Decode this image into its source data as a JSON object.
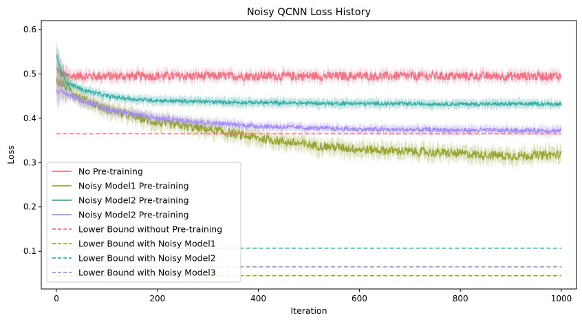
{
  "chart_data": {
    "type": "line",
    "title": "Noisy QCNN Loss History",
    "xlabel": "Iteration",
    "ylabel": "Loss",
    "xlim": [
      -30,
      1030
    ],
    "ylim": [
      0.015,
      0.62
    ],
    "xticks": [
      0,
      200,
      400,
      600,
      800,
      1000
    ],
    "yticks": [
      0.1,
      0.2,
      0.3,
      0.4,
      0.5,
      0.6
    ],
    "grid": false,
    "legend_position": "lower-left",
    "series": [
      {
        "name": "No Pre-training",
        "style": "solid",
        "color": "#f07183",
        "band": true,
        "x": [
          0,
          10,
          20,
          50,
          100,
          200,
          400,
          600,
          800,
          1000
        ],
        "y": [
          0.51,
          0.5,
          0.495,
          0.495,
          0.495,
          0.495,
          0.495,
          0.495,
          0.495,
          0.495
        ]
      },
      {
        "name": "Noisy Model1 Pre-training",
        "style": "solid",
        "color": "#97a431",
        "band": true,
        "x": [
          0,
          20,
          50,
          100,
          200,
          300,
          400,
          500,
          600,
          700,
          800,
          900,
          1000
        ],
        "y": [
          0.485,
          0.47,
          0.445,
          0.42,
          0.39,
          0.375,
          0.355,
          0.34,
          0.33,
          0.325,
          0.32,
          0.315,
          0.318
        ]
      },
      {
        "name": "Noisy Model2 Pre-training",
        "style": "solid",
        "color": "#36ada4",
        "band": true,
        "x": [
          0,
          5,
          10,
          20,
          50,
          100,
          150,
          200,
          300,
          400,
          600,
          800,
          1000
        ],
        "y": [
          0.54,
          0.525,
          0.505,
          0.48,
          0.465,
          0.45,
          0.443,
          0.44,
          0.437,
          0.435,
          0.433,
          0.432,
          0.432
        ]
      },
      {
        "name": "Noisy Model2 Pre-training",
        "style": "solid",
        "color": "#a48cf4",
        "band": true,
        "x": [
          0,
          20,
          50,
          100,
          200,
          300,
          400,
          500,
          600,
          800,
          1000
        ],
        "y": [
          0.462,
          0.455,
          0.44,
          0.42,
          0.4,
          0.39,
          0.382,
          0.378,
          0.375,
          0.373,
          0.372
        ]
      },
      {
        "name": "Lower Bound without Pre-training",
        "style": "dashed",
        "color": "#f07183",
        "band": false,
        "x": [
          0,
          1000
        ],
        "y": [
          0.365,
          0.365
        ]
      },
      {
        "name": "Lower Bound with Noisy Model1",
        "style": "dashed",
        "color": "#97a431",
        "band": false,
        "x": [
          0,
          1000
        ],
        "y": [
          0.045,
          0.045
        ]
      },
      {
        "name": "Lower Bound with Noisy Model2",
        "style": "dashed",
        "color": "#36ada4",
        "band": false,
        "x": [
          0,
          1000
        ],
        "y": [
          0.107,
          0.107
        ]
      },
      {
        "name": "Lower Bound with Noisy Model3",
        "style": "dashed",
        "color": "#a48cf4",
        "band": false,
        "x": [
          0,
          1000
        ],
        "y": [
          0.065,
          0.065
        ]
      }
    ]
  }
}
